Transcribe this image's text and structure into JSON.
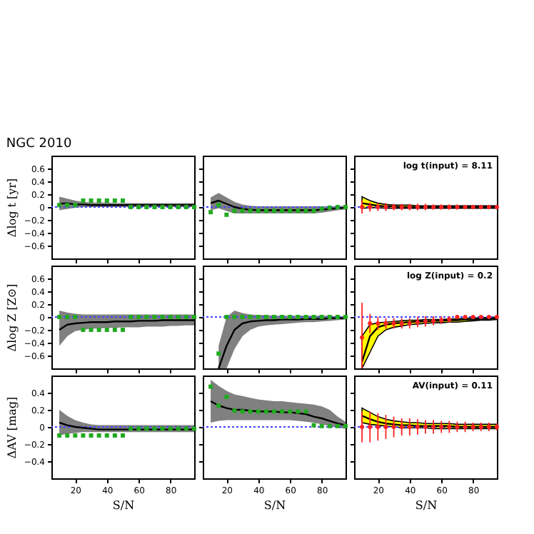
{
  "chart_data": [
    {
      "type": "line",
      "title": "NGC 2010",
      "ylabel": "Δlog t [yr]",
      "x": [
        10,
        15,
        20,
        25,
        30,
        35,
        40,
        45,
        50,
        55,
        60,
        65,
        70,
        75,
        80,
        85,
        90,
        95
      ],
      "xlim": [
        5,
        95
      ],
      "xticks": [
        20,
        40,
        60,
        80
      ],
      "ylim": [
        -0.8,
        0.8
      ],
      "yticks": [
        -0.6,
        -0.4,
        -0.2,
        0,
        0.2,
        0.4,
        0.6
      ],
      "tick_labels": "y",
      "ref_lines": [
        {
          "axis": "y",
          "value": 0,
          "color": "#4444ff",
          "line_style": "dotted"
        }
      ],
      "series": [
        {
          "type": "line",
          "color": "#000000",
          "values": [
            0.05,
            0.06,
            0.04,
            0.04,
            0.03,
            0.03,
            0.03,
            0.03,
            0.03,
            0.03,
            0.03,
            0.03,
            0.03,
            0.03,
            0.03,
            0.03,
            0.03,
            0.03
          ],
          "lower": [
            -0.05,
            -0.03,
            -0.01,
            0,
            0,
            0,
            0,
            0,
            0,
            0,
            0,
            0,
            0,
            0,
            0,
            0,
            0,
            0
          ],
          "upper": [
            0.16,
            0.13,
            0.1,
            0.08,
            0.07,
            0.07,
            0.07,
            0.06,
            0.06,
            0.06,
            0.06,
            0.06,
            0.06,
            0.06,
            0.06,
            0.06,
            0.06,
            0.06
          ]
        },
        {
          "type": "scatter",
          "marker": "square",
          "color": "#22aa22",
          "values": [
            0.03,
            0.03,
            0.03,
            0.1,
            0.1,
            0.1,
            0.1,
            0.1,
            0.1,
            0,
            0,
            0,
            0,
            0,
            0,
            0,
            0,
            0
          ]
        }
      ]
    },
    {
      "type": "line",
      "x": [
        10,
        15,
        20,
        25,
        30,
        35,
        40,
        45,
        50,
        55,
        60,
        65,
        70,
        75,
        80,
        85,
        90,
        95
      ],
      "xlim": [
        5,
        95
      ],
      "xticks": [
        20,
        40,
        60,
        80
      ],
      "ylim": [
        -0.8,
        0.8
      ],
      "yticks": [
        -0.6,
        -0.4,
        -0.2,
        0,
        0.2,
        0.4,
        0.6
      ],
      "tick_labels": false,
      "ref_lines": [
        {
          "axis": "y",
          "value": 0,
          "color": "#4444ff",
          "line_style": "dotted"
        }
      ],
      "series": [
        {
          "type": "line",
          "color": "#000000",
          "values": [
            0.06,
            0.1,
            0.05,
            0.0,
            -0.03,
            -0.04,
            -0.05,
            -0.05,
            -0.05,
            -0.05,
            -0.05,
            -0.05,
            -0.05,
            -0.05,
            -0.04,
            -0.03,
            -0.02,
            -0.01
          ],
          "lower": [
            -0.05,
            -0.02,
            -0.06,
            -0.1,
            -0.1,
            -0.1,
            -0.1,
            -0.1,
            -0.1,
            -0.1,
            -0.1,
            -0.1,
            -0.1,
            -0.1,
            -0.09,
            -0.07,
            -0.05,
            -0.04
          ],
          "upper": [
            0.15,
            0.22,
            0.15,
            0.08,
            0.04,
            0.02,
            0.01,
            0.01,
            0.01,
            0.01,
            0.01,
            0.01,
            0.01,
            0.01,
            0.01,
            0.01,
            0.01,
            0.02
          ]
        },
        {
          "type": "scatter",
          "marker": "square",
          "color": "#22aa22",
          "values": [
            -0.08,
            0.03,
            -0.12,
            -0.06,
            -0.06,
            -0.06,
            -0.06,
            -0.06,
            -0.06,
            -0.06,
            -0.06,
            -0.06,
            -0.06,
            -0.06,
            -0.03,
            -0.01,
            0,
            0
          ]
        }
      ]
    },
    {
      "type": "line",
      "annotations": [
        "log t(input) = 8.11"
      ],
      "x": [
        10,
        15,
        20,
        25,
        30,
        35,
        40,
        45,
        50,
        55,
        60,
        65,
        70,
        75,
        80,
        85,
        90,
        95
      ],
      "xlim": [
        5,
        95
      ],
      "xticks": [
        20,
        40,
        60,
        80
      ],
      "ylim": [
        -0.8,
        0.8
      ],
      "yticks": [
        -0.6,
        -0.4,
        -0.2,
        0,
        0.2,
        0.4,
        0.6
      ],
      "tick_labels": false,
      "ref_lines": [
        {
          "axis": "y",
          "value": 0,
          "color": "#4444ff",
          "line_style": "dotted"
        }
      ],
      "series": [
        {
          "type": "line",
          "color": "#000000",
          "values": [
            0.06,
            0.04,
            0.02,
            0.01,
            0.01,
            0,
            0,
            0,
            0,
            0,
            0,
            0,
            0,
            0,
            0,
            0,
            0,
            0
          ],
          "lower": [
            -0.02,
            -0.01,
            -0.01,
            -0.02,
            -0.02,
            -0.02,
            -0.02,
            -0.02,
            -0.02,
            -0.02,
            -0.02,
            -0.02,
            -0.02,
            -0.02,
            -0.02,
            -0.02,
            -0.02,
            -0.02
          ],
          "upper": [
            0.16,
            0.1,
            0.06,
            0.04,
            0.03,
            0.03,
            0.03,
            0.02,
            0.02,
            0.02,
            0.02,
            0.02,
            0.02,
            0.02,
            0.02,
            0.02,
            0.02,
            0.02
          ]
        },
        {
          "type": "scatter",
          "marker": "circle",
          "color": "#ff2222",
          "values": [
            0,
            0,
            0,
            0,
            0,
            0,
            0,
            0,
            0,
            0,
            0,
            0,
            0,
            0,
            0,
            0,
            0,
            0
          ],
          "errors": [
            0.1,
            0.07,
            0.06,
            0.06,
            0.05,
            0.05,
            0.05,
            0.05,
            0.05,
            0.04,
            0.04,
            0.04,
            0.04,
            0.03,
            0.03,
            0.03,
            0.02,
            0.02
          ]
        }
      ]
    },
    {
      "type": "line",
      "ylabel": "Δlog Z [Z⊙]",
      "x": [
        10,
        15,
        20,
        25,
        30,
        35,
        40,
        45,
        50,
        55,
        60,
        65,
        70,
        75,
        80,
        85,
        90,
        95
      ],
      "xlim": [
        5,
        95
      ],
      "xticks": [
        20,
        40,
        60,
        80
      ],
      "ylim": [
        -0.8,
        0.8
      ],
      "yticks": [
        -0.6,
        -0.4,
        -0.2,
        0,
        0.2,
        0.4,
        0.6
      ],
      "tick_labels": "y",
      "ref_lines": [
        {
          "axis": "y",
          "value": 0,
          "color": "#4444ff",
          "line_style": "dotted"
        }
      ],
      "series": [
        {
          "type": "line",
          "color": "#000000",
          "values": [
            -0.2,
            -0.12,
            -0.1,
            -0.09,
            -0.08,
            -0.08,
            -0.08,
            -0.07,
            -0.07,
            -0.07,
            -0.06,
            -0.06,
            -0.06,
            -0.05,
            -0.05,
            -0.05,
            -0.05,
            -0.05
          ],
          "lower": [
            -0.45,
            -0.3,
            -0.22,
            -0.2,
            -0.18,
            -0.18,
            -0.17,
            -0.17,
            -0.16,
            -0.16,
            -0.16,
            -0.15,
            -0.15,
            -0.15,
            -0.14,
            -0.14,
            -0.13,
            -0.13
          ],
          "upper": [
            0.1,
            0.07,
            0.05,
            0.04,
            0.04,
            0.04,
            0.04,
            0.04,
            0.04,
            0.04,
            0.04,
            0.04,
            0.04,
            0.04,
            0.04,
            0.04,
            0.04,
            0.04
          ]
        },
        {
          "type": "scatter",
          "marker": "square",
          "color": "#22aa22",
          "values": [
            0,
            0,
            0,
            -0.2,
            -0.2,
            -0.2,
            -0.2,
            -0.2,
            -0.2,
            0,
            0,
            0,
            0,
            0,
            0,
            0,
            0,
            0
          ]
        }
      ]
    },
    {
      "type": "line",
      "x": [
        15,
        20,
        25,
        30,
        35,
        40,
        45,
        50,
        55,
        60,
        65,
        70,
        75,
        80,
        85,
        90,
        95
      ],
      "xlim": [
        5,
        95
      ],
      "xticks": [
        20,
        40,
        60,
        80
      ],
      "ylim": [
        -0.8,
        0.8
      ],
      "yticks": [
        -0.6,
        -0.4,
        -0.2,
        0,
        0.2,
        0.4,
        0.6
      ],
      "tick_labels": false,
      "ref_lines": [
        {
          "axis": "y",
          "value": 0,
          "color": "#4444ff",
          "line_style": "dotted"
        }
      ],
      "series": [
        {
          "type": "line",
          "color": "#000000",
          "values": [
            -0.8,
            -0.45,
            -0.2,
            -0.1,
            -0.07,
            -0.06,
            -0.05,
            -0.05,
            -0.04,
            -0.04,
            -0.04,
            -0.03,
            -0.03,
            -0.03,
            -0.02,
            -0.02,
            -0.02
          ],
          "lower": [
            -0.8,
            -0.8,
            -0.5,
            -0.3,
            -0.2,
            -0.15,
            -0.13,
            -0.12,
            -0.11,
            -0.1,
            -0.09,
            -0.08,
            -0.08,
            -0.07,
            -0.06,
            -0.05,
            -0.04
          ],
          "upper": [
            -0.45,
            0.0,
            0.1,
            0.06,
            0.04,
            0.03,
            0.03,
            0.02,
            0.02,
            0.02,
            0.02,
            0.02,
            0.02,
            0.02,
            0.02,
            0.01,
            0.01
          ]
        },
        {
          "type": "scatter",
          "marker": "square",
          "color": "#22aa22",
          "values": [
            -0.57,
            0,
            0,
            0,
            0,
            0,
            0,
            0,
            0,
            0,
            0,
            0,
            0,
            0,
            0,
            0,
            0
          ]
        }
      ]
    },
    {
      "type": "line",
      "annotations": [
        "log Z(input) = 0.2"
      ],
      "x": [
        10,
        15,
        20,
        25,
        30,
        35,
        40,
        45,
        50,
        55,
        60,
        65,
        70,
        75,
        80,
        85,
        90,
        95
      ],
      "xlim": [
        5,
        95
      ],
      "xticks": [
        20,
        40,
        60,
        80
      ],
      "ylim": [
        -0.8,
        0.8
      ],
      "yticks": [
        -0.6,
        -0.4,
        -0.2,
        0,
        0.2,
        0.4,
        0.6
      ],
      "tick_labels": false,
      "ref_lines": [
        {
          "axis": "y",
          "value": 0,
          "color": "#4444ff",
          "line_style": "dotted"
        }
      ],
      "series": [
        {
          "type": "line",
          "color": "#000000",
          "values": [
            -0.7,
            -0.3,
            -0.16,
            -0.12,
            -0.1,
            -0.09,
            -0.08,
            -0.07,
            -0.07,
            -0.06,
            -0.06,
            -0.05,
            -0.05,
            -0.04,
            -0.04,
            -0.03,
            -0.03,
            -0.02
          ],
          "lower": [
            -0.8,
            -0.55,
            -0.3,
            -0.2,
            -0.16,
            -0.14,
            -0.12,
            -0.11,
            -0.1,
            -0.09,
            -0.09,
            -0.08,
            -0.08,
            -0.07,
            -0.06,
            -0.05,
            -0.05,
            -0.04
          ],
          "upper": [
            -0.3,
            -0.12,
            -0.09,
            -0.08,
            -0.07,
            -0.06,
            -0.05,
            -0.05,
            -0.04,
            -0.04,
            -0.04,
            -0.03,
            -0.03,
            -0.02,
            -0.02,
            -0.01,
            -0.01,
            0
          ]
        },
        {
          "type": "scatter",
          "marker": "circle",
          "color": "#ff2222",
          "values": [
            -0.32,
            -0.1,
            -0.1,
            -0.1,
            -0.1,
            -0.1,
            -0.1,
            -0.08,
            -0.07,
            -0.06,
            -0.05,
            -0.04,
            0,
            0,
            0,
            0,
            0,
            0
          ],
          "errors": [
            [
              -0.8,
              0.22
            ],
            0.15,
            0.1,
            0.08,
            0.08,
            0.08,
            0.08,
            0.08,
            0.08,
            0.07,
            0.06,
            0.05,
            0.02,
            0.02,
            0.02,
            0.02,
            0.02,
            0.02
          ]
        }
      ]
    },
    {
      "type": "line",
      "ylabel": "ΔAV [mag]",
      "xlabel": "S/N",
      "x": [
        10,
        15,
        20,
        25,
        30,
        35,
        40,
        45,
        50,
        55,
        60,
        65,
        70,
        75,
        80,
        85,
        90,
        95
      ],
      "xlim": [
        5,
        95
      ],
      "xticks": [
        20,
        40,
        60,
        80
      ],
      "ylim": [
        -0.6,
        0.6
      ],
      "yticks": [
        -0.4,
        -0.2,
        0,
        0.2,
        0.4
      ],
      "ref_lines": [
        {
          "axis": "y",
          "value": 0,
          "color": "#4444ff",
          "line_style": "dotted"
        }
      ],
      "series": [
        {
          "type": "line",
          "color": "#000000",
          "values": [
            0.05,
            0.02,
            0,
            -0.01,
            -0.02,
            -0.03,
            -0.03,
            -0.03,
            -0.03,
            -0.03,
            -0.03,
            -0.03,
            -0.03,
            -0.03,
            -0.03,
            -0.03,
            -0.03,
            -0.03
          ],
          "lower": [
            -0.1,
            -0.08,
            -0.07,
            -0.06,
            -0.06,
            -0.06,
            -0.06,
            -0.06,
            -0.06,
            -0.06,
            -0.06,
            -0.06,
            -0.06,
            -0.06,
            -0.06,
            -0.06,
            -0.06,
            -0.06
          ],
          "upper": [
            0.2,
            0.13,
            0.08,
            0.05,
            0.03,
            0.02,
            0.02,
            0.02,
            0.02,
            0.02,
            0.02,
            0.02,
            0.02,
            0.02,
            0.02,
            0.02,
            0.02,
            0.02
          ]
        },
        {
          "type": "scatter",
          "marker": "square",
          "color": "#22aa22",
          "values": [
            -0.1,
            -0.1,
            -0.1,
            -0.1,
            -0.1,
            -0.1,
            -0.1,
            -0.1,
            -0.1,
            -0.02,
            -0.02,
            -0.02,
            -0.02,
            -0.02,
            -0.02,
            -0.02,
            -0.02,
            -0.02
          ]
        }
      ]
    },
    {
      "type": "line",
      "xlabel": "S/N",
      "x": [
        10,
        15,
        20,
        25,
        30,
        35,
        40,
        45,
        50,
        55,
        60,
        65,
        70,
        75,
        80,
        85,
        90,
        95
      ],
      "xlim": [
        5,
        95
      ],
      "xticks": [
        20,
        40,
        60,
        80
      ],
      "ylim": [
        -0.6,
        0.6
      ],
      "yticks": [
        -0.4,
        -0.2,
        0,
        0.2,
        0.4
      ],
      "tick_labels": "x",
      "ref_lines": [
        {
          "axis": "y",
          "value": 0,
          "color": "#4444ff",
          "line_style": "dotted"
        }
      ],
      "series": [
        {
          "type": "line",
          "color": "#000000",
          "values": [
            0.3,
            0.25,
            0.22,
            0.2,
            0.2,
            0.19,
            0.18,
            0.18,
            0.18,
            0.17,
            0.17,
            0.16,
            0.15,
            0.12,
            0.1,
            0.07,
            0.04,
            0.02
          ],
          "lower": [
            0.05,
            0.07,
            0.08,
            0.08,
            0.08,
            0.08,
            0.08,
            0.08,
            0.08,
            0.08,
            0.08,
            0.07,
            0.06,
            0.05,
            0.03,
            0.01,
            -0.01,
            -0.02
          ],
          "upper": [
            0.55,
            0.48,
            0.42,
            0.38,
            0.36,
            0.34,
            0.32,
            0.31,
            0.3,
            0.3,
            0.29,
            0.28,
            0.27,
            0.26,
            0.24,
            0.2,
            0.12,
            0.06
          ]
        },
        {
          "type": "scatter",
          "marker": "square",
          "color": "#22aa22",
          "values": [
            0.47,
            0.25,
            0.35,
            0.19,
            0.18,
            0.18,
            0.18,
            0.18,
            0.18,
            0.18,
            0.18,
            0.18,
            0.18,
            0.02,
            0.01,
            0.01,
            0.01,
            0.01
          ]
        }
      ]
    },
    {
      "type": "line",
      "xlabel": "S/N",
      "annotations": [
        "AV(input) = 0.11"
      ],
      "x": [
        10,
        15,
        20,
        25,
        30,
        35,
        40,
        45,
        50,
        55,
        60,
        65,
        70,
        75,
        80,
        85,
        90,
        95
      ],
      "xlim": [
        5,
        95
      ],
      "xticks": [
        20,
        40,
        60,
        80
      ],
      "ylim": [
        -0.6,
        0.6
      ],
      "yticks": [
        -0.4,
        -0.2,
        0,
        0.2,
        0.4
      ],
      "tick_labels": "x",
      "ref_lines": [
        {
          "axis": "y",
          "value": 0,
          "color": "#4444ff",
          "line_style": "dotted"
        }
      ],
      "series": [
        {
          "type": "line",
          "color": "#000000",
          "values": [
            0.13,
            0.09,
            0.06,
            0.04,
            0.03,
            0.02,
            0.02,
            0.01,
            0.01,
            0.01,
            0.01,
            0.01,
            0,
            0,
            0,
            0,
            0,
            0
          ],
          "lower": [
            0.05,
            0.03,
            0.02,
            0.01,
            0,
            -0.01,
            -0.01,
            -0.01,
            -0.01,
            -0.02,
            -0.02,
            -0.02,
            -0.02,
            -0.02,
            -0.02,
            -0.02,
            -0.02,
            -0.02
          ],
          "upper": [
            0.22,
            0.17,
            0.12,
            0.09,
            0.07,
            0.06,
            0.05,
            0.05,
            0.04,
            0.04,
            0.04,
            0.04,
            0.03,
            0.03,
            0.03,
            0.03,
            0.03,
            0.03
          ]
        },
        {
          "type": "scatter",
          "marker": "circle",
          "color": "#ff2222",
          "values": [
            0,
            0,
            0,
            0,
            0,
            0,
            0,
            0,
            0,
            0,
            0,
            0,
            0,
            0,
            0,
            0,
            0,
            0
          ],
          "errors": [
            0.18,
            0.18,
            0.16,
            0.14,
            0.12,
            0.1,
            0.1,
            0.09,
            0.08,
            0.08,
            0.07,
            0.07,
            0.06,
            0.06,
            0.05,
            0.05,
            0.05,
            0.04
          ]
        }
      ]
    }
  ]
}
